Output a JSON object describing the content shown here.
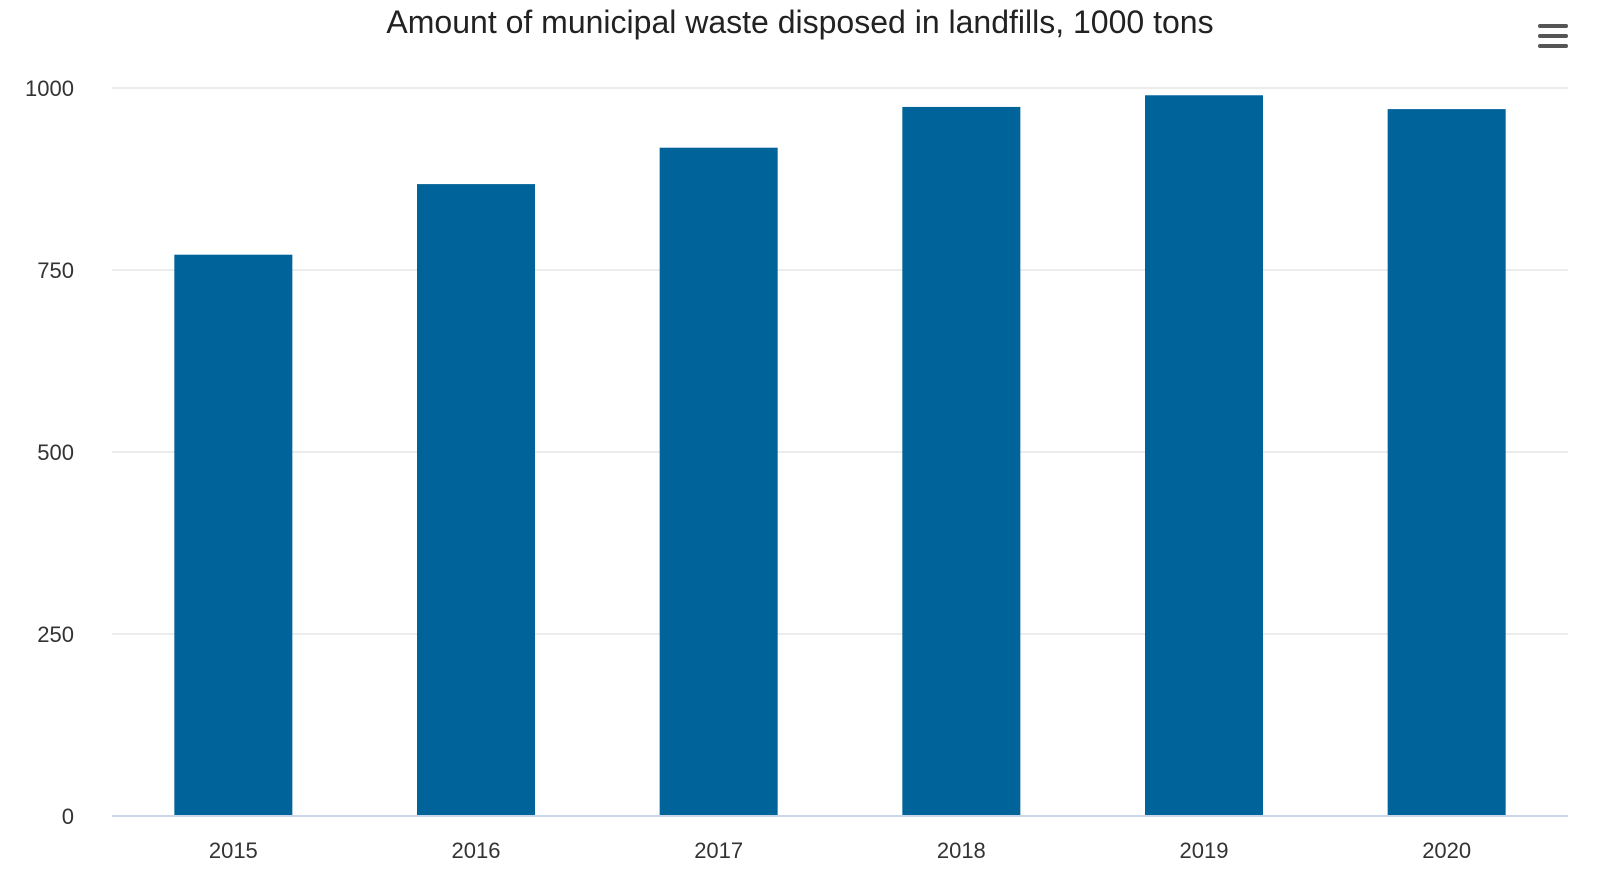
{
  "chart_data": {
    "type": "bar",
    "title": "Amount of municipal waste disposed in landfills, 1000 tons",
    "categories": [
      "2015",
      "2016",
      "2017",
      "2018",
      "2019",
      "2020"
    ],
    "values": [
      771,
      868,
      918,
      974,
      990,
      971
    ],
    "xlabel": "",
    "ylabel": "",
    "ylim": [
      0,
      1000
    ],
    "yticks": [
      0,
      250,
      500,
      750,
      1000
    ],
    "ytick_labels": [
      "0",
      "250",
      "500",
      "750",
      "1000"
    ],
    "grid": true,
    "legend": "none",
    "bar_color": "#006399",
    "grid_color": "#e6e6e6",
    "axis_color": "#ccd6eb"
  },
  "menu": {
    "icon": "hamburger-menu-icon"
  }
}
